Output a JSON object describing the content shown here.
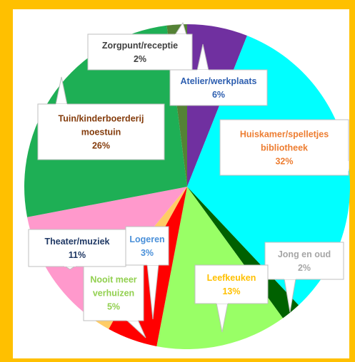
{
  "chart_data": {
    "type": "pie",
    "title": "",
    "start_angle_deg": 0,
    "direction": "clockwise",
    "slices": [
      {
        "label": [
          "Atelier/werkplaats"
        ],
        "pct_label": "6%",
        "value": 6,
        "color": "#7030A0",
        "label_color": "#2E5FB0"
      },
      {
        "label": [
          "Huiskamer/spelletjes",
          "bibliotheek"
        ],
        "pct_label": "32%",
        "value": 32,
        "color": "#00FFFF",
        "label_color": "#ED7D31"
      },
      {
        "label": [
          "Jong en oud"
        ],
        "pct_label": "2%",
        "value": 2,
        "color": "#006100",
        "label_color": "#A6A6A6"
      },
      {
        "label": [
          "Leefkeuken"
        ],
        "pct_label": "13%",
        "value": 13,
        "color": "#99FF66",
        "label_color": "#FFC000"
      },
      {
        "label": [
          "Nooit meer",
          "verhuizen"
        ],
        "pct_label": "5%",
        "value": 5,
        "color": "#FF0000",
        "label_color": "#92D050"
      },
      {
        "label": [
          "Logeren"
        ],
        "pct_label": "3%",
        "value": 3,
        "color": "#FFCC66",
        "label_color": "#4A90D9"
      },
      {
        "label": [
          "Theater/muziek"
        ],
        "pct_label": "11%",
        "value": 11,
        "color": "#FF99CC",
        "label_color": "#1F3864"
      },
      {
        "label": [
          "Tuin/kinderboerderij",
          "moestuin"
        ],
        "pct_label": "26%",
        "value": 26,
        "color": "#1EAF55",
        "label_color": "#843C0C"
      },
      {
        "label": [
          "Zorgpunt/receptie"
        ],
        "pct_label": "2%",
        "value": 2,
        "color": "#548235",
        "label_color": "#404040"
      }
    ]
  }
}
